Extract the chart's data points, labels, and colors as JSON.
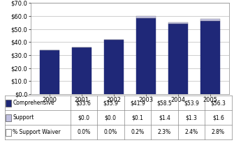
{
  "years": [
    "2000",
    "2001",
    "2002",
    "2003",
    "2004",
    "2005"
  ],
  "comprehensive": [
    33.6,
    35.9,
    41.9,
    58.5,
    53.9,
    56.3
  ],
  "support": [
    0.0,
    0.0,
    0.1,
    1.4,
    1.3,
    1.6
  ],
  "bar_color_comprehensive": "#1f2878",
  "bar_color_support": "#c0c0e0",
  "ylim": [
    0,
    70
  ],
  "yticks": [
    0,
    10,
    20,
    30,
    40,
    50,
    60,
    70
  ],
  "legend_rows": [
    [
      "Comprehensive",
      "$33.6",
      "$35.9",
      "$41.9",
      "$58.5",
      "$53.9",
      "$56.3"
    ],
    [
      "Support",
      "$0.0",
      "$0.0",
      "$0.1",
      "$1.4",
      "$1.3",
      "$1.6"
    ],
    [
      "% Support Waiver",
      "0.0%",
      "0.0%",
      "0.2%",
      "2.3%",
      "2.4%",
      "2.8%"
    ]
  ],
  "background_color": "#ffffff",
  "grid_color": "#bbbbbb",
  "tick_fontsize": 6,
  "legend_fontsize": 5.5
}
